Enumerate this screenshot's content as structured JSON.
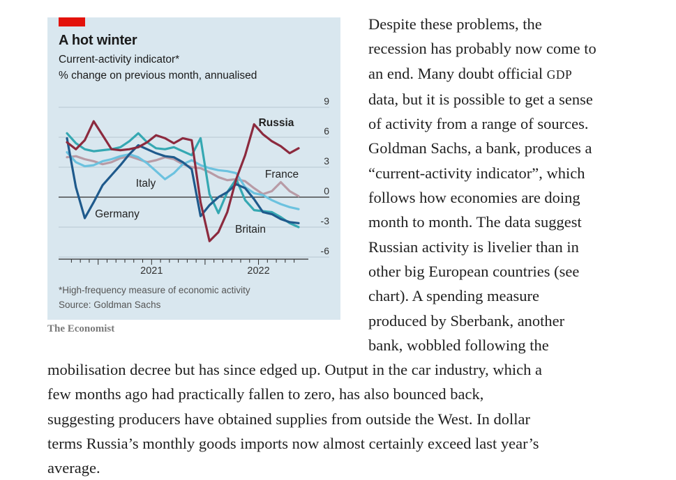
{
  "chart": {
    "title": "A hot winter",
    "subtitle": "Current-activity indicator*",
    "subtitle2": "% change on previous month, annualised",
    "footnote": "*High-frequency measure of economic activity",
    "source": "Source: Goldman Sachs",
    "credit": "The Economist"
  },
  "chart_data": {
    "type": "line",
    "title": "A hot winter",
    "subtitle": "Current-activity indicator*",
    "ylabel": "% change on previous month, annualised",
    "x": [
      "2020-09",
      "2020-10",
      "2020-11",
      "2020-12",
      "2021-01",
      "2021-02",
      "2021-03",
      "2021-04",
      "2021-05",
      "2021-06",
      "2021-07",
      "2021-08",
      "2021-09",
      "2021-10",
      "2021-11",
      "2021-12",
      "2022-01",
      "2022-02",
      "2022-03",
      "2022-04",
      "2022-05",
      "2022-06",
      "2022-07",
      "2022-08",
      "2022-09",
      "2022-10",
      "2022-11"
    ],
    "ylim": [
      -6,
      9
    ],
    "yticks": [
      -6,
      -3,
      0,
      3,
      6,
      9
    ],
    "xtick_labels": [
      "2021",
      "2022"
    ],
    "grid": true,
    "series": [
      {
        "name": "Russia",
        "color": "#8c2a3e",
        "label_position": "end",
        "values": [
          5.5,
          4.8,
          5.7,
          7.6,
          6.2,
          4.8,
          4.7,
          4.8,
          5.0,
          5.5,
          6.2,
          5.9,
          5.4,
          5.9,
          5.7,
          -0.5,
          -4.4,
          -3.5,
          -1.5,
          1.8,
          4.2,
          7.3,
          6.3,
          5.6,
          5.1,
          4.4,
          4.9
        ]
      },
      {
        "name": "Germany",
        "color": "#1f5a8c",
        "label_position": "lower-left",
        "values": [
          5.9,
          1.0,
          -2.1,
          -0.5,
          1.2,
          2.2,
          3.2,
          4.3,
          5.2,
          4.8,
          4.4,
          4.1,
          4.0,
          3.5,
          2.8,
          -1.9,
          -0.8,
          0.0,
          0.5,
          1.3,
          0.9,
          -0.2,
          -1.5,
          -1.7,
          -2.2,
          -2.5,
          -2.6
        ]
      },
      {
        "name": "France",
        "color": "#35a8b2",
        "label_position": "right",
        "values": [
          6.4,
          5.4,
          4.8,
          4.6,
          4.7,
          4.8,
          5.0,
          5.6,
          6.4,
          5.5,
          4.9,
          4.8,
          5.0,
          4.6,
          4.2,
          5.9,
          0.3,
          -1.6,
          0.5,
          1.8,
          -0.3,
          -1.3,
          -1.4,
          -1.5,
          -2.0,
          -2.6,
          -3.0
        ]
      },
      {
        "name": "Italy",
        "color": "#6cc2df",
        "label_position": "left",
        "values": [
          4.5,
          3.5,
          3.1,
          3.2,
          3.6,
          3.8,
          4.1,
          4.3,
          4.0,
          3.4,
          2.6,
          1.8,
          2.4,
          3.3,
          3.7,
          3.2,
          2.9,
          2.7,
          2.6,
          2.4,
          1.0,
          0.4,
          0.2,
          -0.3,
          -0.7,
          -1.0,
          -1.2
        ]
      },
      {
        "name": "Britain",
        "color": "#b89ba6",
        "label_position": "below",
        "values": [
          4.0,
          4.1,
          3.8,
          3.6,
          3.3,
          3.5,
          3.9,
          4.1,
          3.8,
          3.5,
          3.7,
          4.0,
          3.8,
          3.3,
          3.0,
          2.9,
          2.5,
          2.0,
          1.7,
          1.8,
          1.6,
          0.9,
          0.3,
          0.6,
          1.5,
          0.6,
          0.1
        ]
      }
    ]
  },
  "article": {
    "right_lines": [
      "Despite these problems, the",
      "recession has probably now come to",
      "an end. Many doubt official ",
      "data, but it is possible to get a sense",
      "of activity from a range of sources.",
      "Goldman Sachs, a bank, produces a",
      "“current-activity indicator”, which",
      "follows how economies are doing",
      "month to month. The data suggest",
      "Russian activity is livelier than in",
      "other big European countries (see",
      "chart). A spending measure",
      "produced by Sberbank, another",
      "bank, wobbled following the"
    ],
    "gdp_abbr": "GDP",
    "bottom_lines": [
      "mobilisation decree but has since edged up. Output in the car industry, which a",
      "few months ago had practically fallen to zero, has also bounced back,",
      "suggesting producers have obtained supplies from outside the West. In dollar",
      "terms Russia’s monthly goods imports now almost certainly exceed last year’s",
      "average."
    ]
  }
}
